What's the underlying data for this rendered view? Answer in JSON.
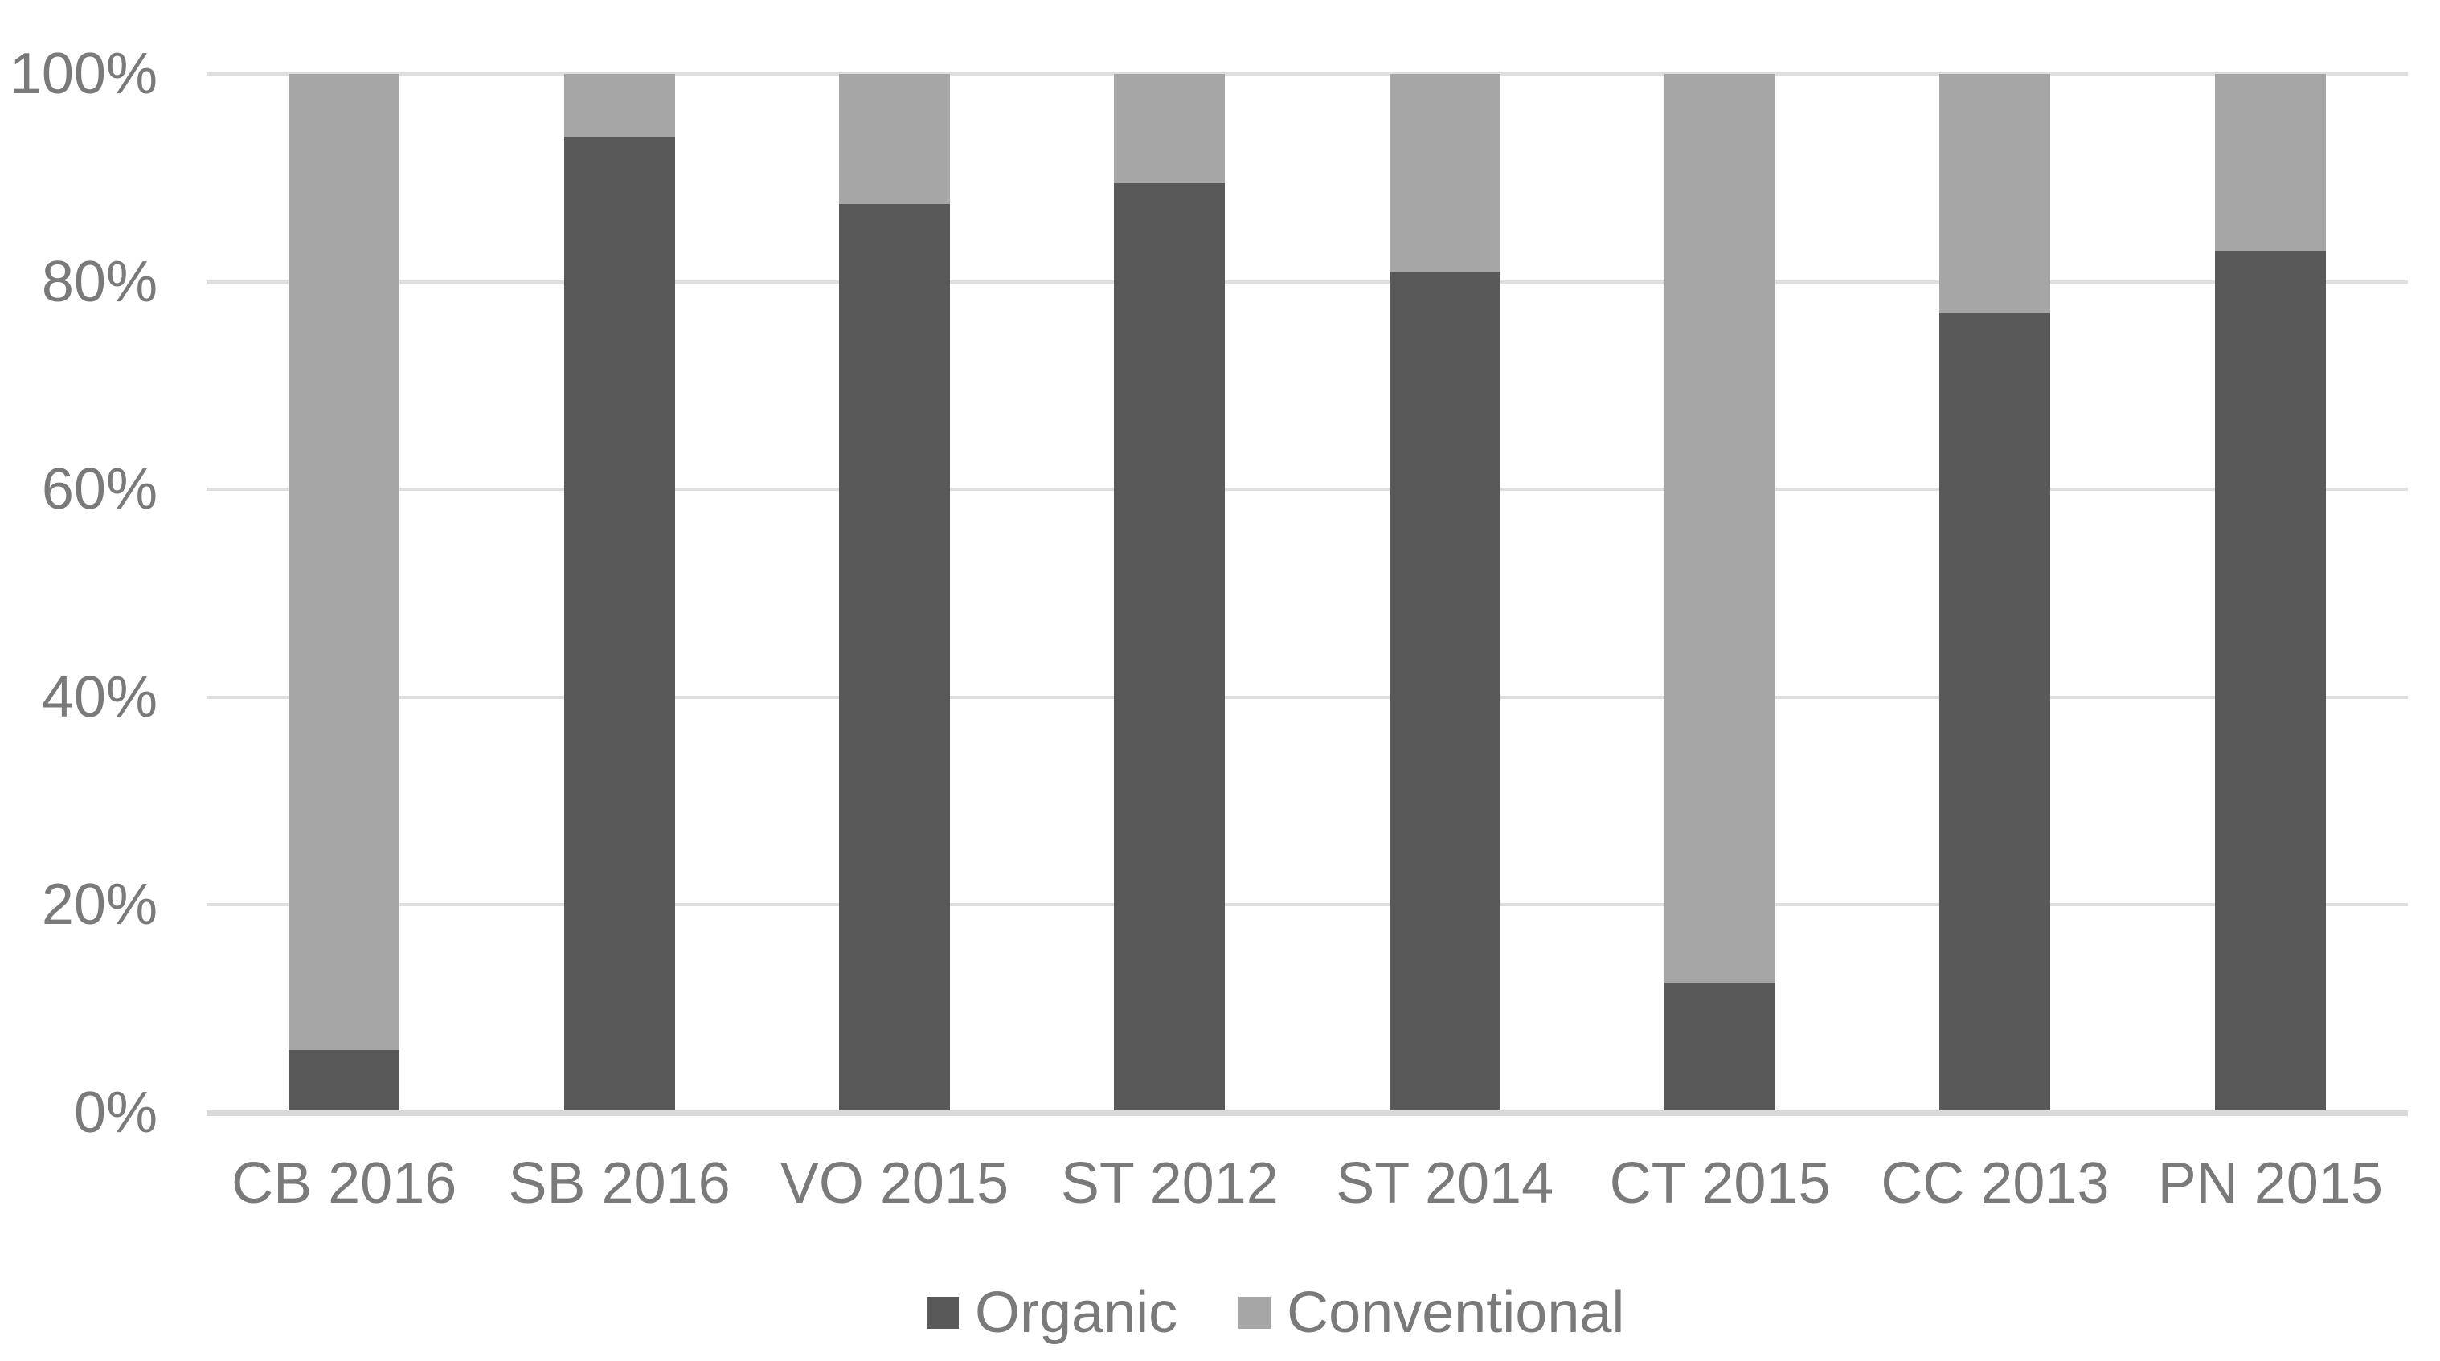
{
  "chart_data": {
    "type": "bar",
    "stacked": true,
    "stacked_mode": "percent",
    "title": "",
    "xlabel": "",
    "ylabel": "",
    "categories": [
      "CB 2016",
      "SB 2016",
      "VO 2015",
      "ST 2012",
      "ST 2014",
      "CT 2015",
      "CC 2013",
      "PN 2015"
    ],
    "series": [
      {
        "name": "Organic",
        "color": "#595959",
        "values": [
          6,
          94,
          87.5,
          89.5,
          81,
          12.5,
          77,
          83
        ]
      },
      {
        "name": "Conventional",
        "color": "#a6a6a6",
        "values": [
          94,
          6,
          12.5,
          10.5,
          19,
          87.5,
          23,
          17
        ]
      }
    ],
    "ylim": [
      0,
      100
    ],
    "yticks": [
      "0%",
      "20%",
      "40%",
      "60%",
      "80%",
      "100%"
    ],
    "grid": true,
    "legend_position": "bottom"
  },
  "colors": {
    "background": "#ffffff",
    "gridline": "#dedede",
    "axis_line": "#d9d9d9",
    "text": "#7a7a7a"
  }
}
